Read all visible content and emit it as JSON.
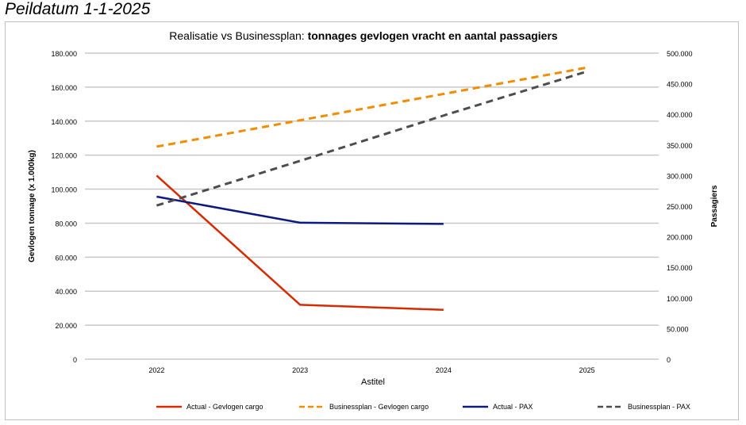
{
  "header": {
    "title": "Peildatum 1-1-2025"
  },
  "chart_data": {
    "type": "line",
    "title_normal": "Realisatie vs Businessplan: ",
    "title_bold": "tonnages gevlogen vracht en aantal passagiers",
    "xlabel": "Astitel",
    "ylabel": "Gevlogen tonnage (x 1.000kg)",
    "y2label": "Passagiers",
    "categories": [
      "2022",
      "2023",
      "2024",
      "2025"
    ],
    "ylim": [
      0,
      180000
    ],
    "y2lim": [
      0,
      500000
    ],
    "yticks": [
      "0",
      "20.000",
      "40.000",
      "60.000",
      "80.000",
      "100.000",
      "120.000",
      "140.000",
      "160.000",
      "180.000"
    ],
    "y2ticks": [
      "0",
      "50.000",
      "100.000",
      "150.000",
      "200.000",
      "250.000",
      "300.000",
      "350.000",
      "400.000",
      "450.000",
      "500.000"
    ],
    "grid": true,
    "legend_placement": "bottom",
    "series": [
      {
        "name": "Actual - Gevlogen cargo",
        "axis": "left",
        "color": "#d62b00",
        "dashed": false,
        "values": [
          108000,
          32000,
          29000,
          null
        ]
      },
      {
        "name": "Businessplan - Gevlogen cargo",
        "axis": "left",
        "color": "#f28c00",
        "dashed": true,
        "values": [
          125000,
          140500,
          156000,
          171500
        ]
      },
      {
        "name": "Actual - PAX",
        "axis": "right",
        "color": "#0c1a80",
        "dashed": false,
        "values": [
          265500,
          223000,
          221000,
          null
        ]
      },
      {
        "name": "Businessplan - PAX",
        "axis": "right",
        "color": "#4d4d4d",
        "dashed": true,
        "values": [
          251000,
          324000,
          398000,
          470000
        ]
      }
    ]
  }
}
